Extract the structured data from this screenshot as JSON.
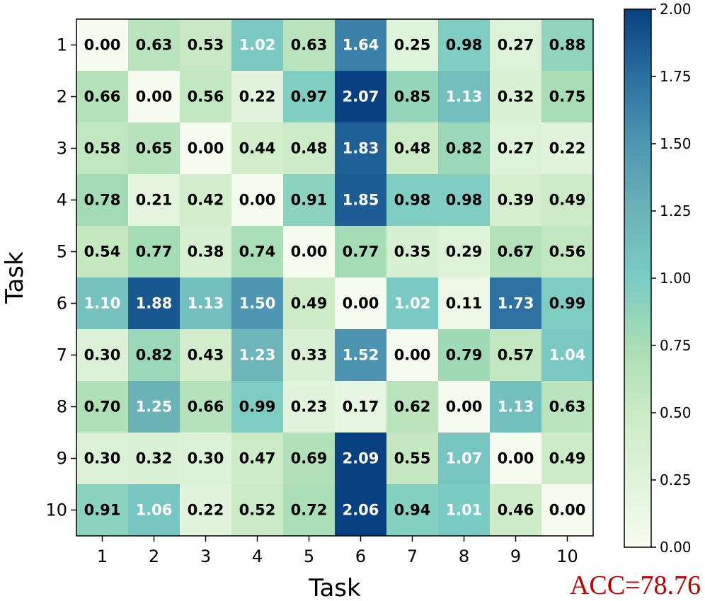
{
  "chart_data": {
    "type": "heatmap",
    "xlabel": "Task",
    "ylabel": "Task",
    "x_categories": [
      "1",
      "2",
      "3",
      "4",
      "5",
      "6",
      "7",
      "8",
      "9",
      "10"
    ],
    "y_categories": [
      "1",
      "2",
      "3",
      "4",
      "5",
      "6",
      "7",
      "8",
      "9",
      "10"
    ],
    "values": [
      [
        0.0,
        0.63,
        0.53,
        1.02,
        0.63,
        1.64,
        0.25,
        0.98,
        0.27,
        0.88
      ],
      [
        0.66,
        0.0,
        0.56,
        0.22,
        0.97,
        2.07,
        0.85,
        1.13,
        0.32,
        0.75
      ],
      [
        0.58,
        0.65,
        0.0,
        0.44,
        0.48,
        1.83,
        0.48,
        0.82,
        0.27,
        0.22
      ],
      [
        0.78,
        0.21,
        0.42,
        0.0,
        0.91,
        1.85,
        0.98,
        0.98,
        0.39,
        0.49
      ],
      [
        0.54,
        0.77,
        0.38,
        0.74,
        0.0,
        0.77,
        0.35,
        0.29,
        0.67,
        0.56
      ],
      [
        1.1,
        1.88,
        1.13,
        1.5,
        0.49,
        0.0,
        1.02,
        0.11,
        1.73,
        0.99
      ],
      [
        0.3,
        0.82,
        0.43,
        1.23,
        0.33,
        1.52,
        0.0,
        0.79,
        0.57,
        1.04
      ],
      [
        0.7,
        1.25,
        0.66,
        0.99,
        0.23,
        0.17,
        0.62,
        0.0,
        1.13,
        0.63
      ],
      [
        0.3,
        0.32,
        0.3,
        0.47,
        0.69,
        2.09,
        0.55,
        1.07,
        0.0,
        0.49
      ],
      [
        0.91,
        1.06,
        0.22,
        0.52,
        0.72,
        2.06,
        0.94,
        1.01,
        0.46,
        0.0
      ]
    ],
    "colorbar": {
      "range": [
        0.0,
        2.0
      ],
      "ticks": [
        0.0,
        0.25,
        0.5,
        0.75,
        1.0,
        1.25,
        1.5,
        1.75,
        2.0
      ],
      "tick_labels": [
        "0.00",
        "0.25",
        "0.50",
        "0.75",
        "1.00",
        "1.25",
        "1.50",
        "1.75",
        "2.00"
      ],
      "colormap": "GnBu",
      "color_stops": [
        "#f7fcf0",
        "#e0f3db",
        "#ccebc5",
        "#a8ddb5",
        "#7bccc4",
        "#6cb3b8",
        "#4f96b3",
        "#2b6fa0",
        "#084081"
      ]
    },
    "cell_text_colors": {
      "light_cells": "#000000",
      "dark_cells": "#ffffff"
    },
    "annotation": "ACC=78.76",
    "annotation_color": "#c00000"
  }
}
